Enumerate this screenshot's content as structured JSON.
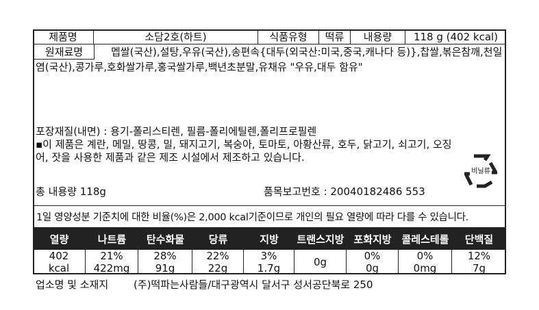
{
  "product": {
    "name_label": "제품명",
    "name": "소담2호(하트)",
    "type_label": "식품유형",
    "type": "떡류",
    "content_label": "내용량",
    "content": "118 g (402 kcal)"
  },
  "ingredients": {
    "label": "원재료명",
    "text": "멥쌀(국산),설탕,우유(국산),송편속{대두(외국산:미국,중국,캐나다 등)},찹쌀,볶은참깨,천일염(국산),콩가루,호화쌀가루,홍국쌀가루,백년초분말,유채유 \"우유,대두 함유\""
  },
  "packaging": "포장재질(내면) : 용기-폴리스티렌, 필름-폴리에틸렌,폴리프로필렌",
  "allergy": "▪이 제품은 계란, 메밀, 땅콩, 밀, 돼지고기, 복숭아, 토마토, 아황산류, 호두, 닭고기, 쇠고기, 오징어, 잣을 사용한 제품과 같은 제조 시설에서 제조하고 있습니다.",
  "total_content": "총 내용량 118g",
  "report_number": "품목보고번호 : 20040182486 553",
  "recycle": {
    "icon": "recycle-vinyl-icon",
    "text": "비닐류"
  },
  "nutrition": {
    "note": "1일 영양성분 기준치에 대한 비율(%)은 2,000 kcal기준이므로 개인의 필요 열량에 따라 다를 수 있습니다.",
    "headers": [
      "열량",
      "나트륨",
      "탄수화물",
      "당류",
      "지방",
      "트랜스지방",
      "포화지방",
      "콜레스테롤",
      "단백질"
    ],
    "values": [
      [
        "402",
        "kcal"
      ],
      [
        "21%",
        "422mg"
      ],
      [
        "28%",
        "91g"
      ],
      [
        "22%",
        "22g"
      ],
      [
        "3%",
        "1.7g"
      ],
      [
        "0g",
        ""
      ],
      [
        "0%",
        "0g"
      ],
      [
        "0%",
        "0mg"
      ],
      [
        "12%",
        "7g"
      ]
    ]
  },
  "manufacturer": {
    "label": "업소명 및 소재지",
    "value": "(주)떡파는사람들/대구광역시 달서구 성서공단북로 250"
  }
}
